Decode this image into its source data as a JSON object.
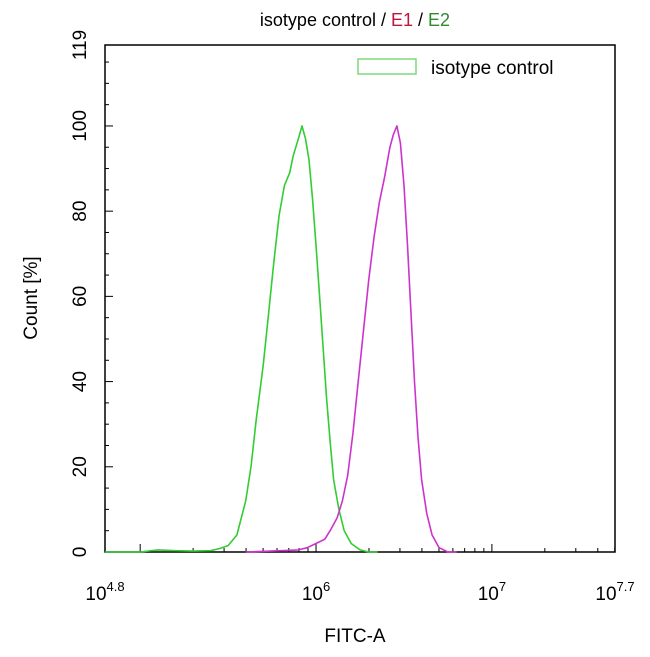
{
  "chart_data": {
    "type": "line",
    "title_parts": [
      {
        "text": "isotype control",
        "color": "#000000"
      },
      {
        "text": " / ",
        "color": "#000000"
      },
      {
        "text": "E1",
        "color": "#c0143c"
      },
      {
        "text": " / ",
        "color": "#000000"
      },
      {
        "text": "E2",
        "color": "#2e8b2e"
      }
    ],
    "xlabel": "FITC-A",
    "ylabel": "Count  [%]",
    "x_scale": "log10",
    "xlim": [
      4.8,
      7.7
    ],
    "ylim": [
      0,
      119
    ],
    "x_ticks": [
      {
        "exp": 4.8,
        "base": "10",
        "sup": "4.8"
      },
      {
        "exp": 6,
        "base": "10",
        "sup": "6"
      },
      {
        "exp": 7,
        "base": "10",
        "sup": "7"
      },
      {
        "exp": 7.7,
        "base": "10",
        "sup": "7.7"
      }
    ],
    "y_ticks": [
      0,
      20,
      40,
      60,
      80,
      100,
      119
    ],
    "legend": {
      "placement": "top-right",
      "entries": [
        {
          "label": "isotype control",
          "color": "#7ed87e"
        }
      ]
    },
    "series": [
      {
        "color": "#33cc33",
        "log_x": [
          4.8,
          5.0,
          5.1,
          5.2,
          5.3,
          5.4,
          5.45,
          5.5,
          5.55,
          5.6,
          5.63,
          5.66,
          5.7,
          5.73,
          5.76,
          5.79,
          5.82,
          5.85,
          5.87,
          5.9,
          5.92,
          5.94,
          5.96,
          5.98,
          6.0,
          6.02,
          6.04,
          6.06,
          6.08,
          6.1,
          6.13,
          6.16,
          6.2,
          6.25,
          6.3,
          6.35
        ],
        "values": [
          0,
          0,
          0.5,
          0.3,
          0.2,
          0.3,
          0.8,
          1.5,
          4,
          12,
          20,
          31,
          44,
          56,
          68,
          79,
          86,
          89,
          93,
          97,
          100,
          97,
          92,
          83,
          72,
          60,
          48,
          36,
          26,
          17,
          10,
          5,
          2,
          0.5,
          0,
          0
        ]
      },
      {
        "color": "#cc33cc",
        "log_x": [
          5.6,
          5.8,
          5.9,
          5.95,
          6.0,
          6.05,
          6.08,
          6.12,
          6.15,
          6.18,
          6.21,
          6.24,
          6.27,
          6.3,
          6.33,
          6.36,
          6.39,
          6.42,
          6.44,
          6.46,
          6.48,
          6.5,
          6.52,
          6.54,
          6.56,
          6.58,
          6.6,
          6.63,
          6.66,
          6.7,
          6.75,
          6.8
        ],
        "values": [
          0,
          0.3,
          0.5,
          1,
          2,
          3,
          5,
          8,
          12,
          18,
          28,
          40,
          52,
          64,
          74,
          82,
          88,
          95,
          98,
          100,
          96,
          86,
          72,
          56,
          40,
          27,
          17,
          9,
          4,
          1,
          0,
          0
        ]
      }
    ]
  }
}
